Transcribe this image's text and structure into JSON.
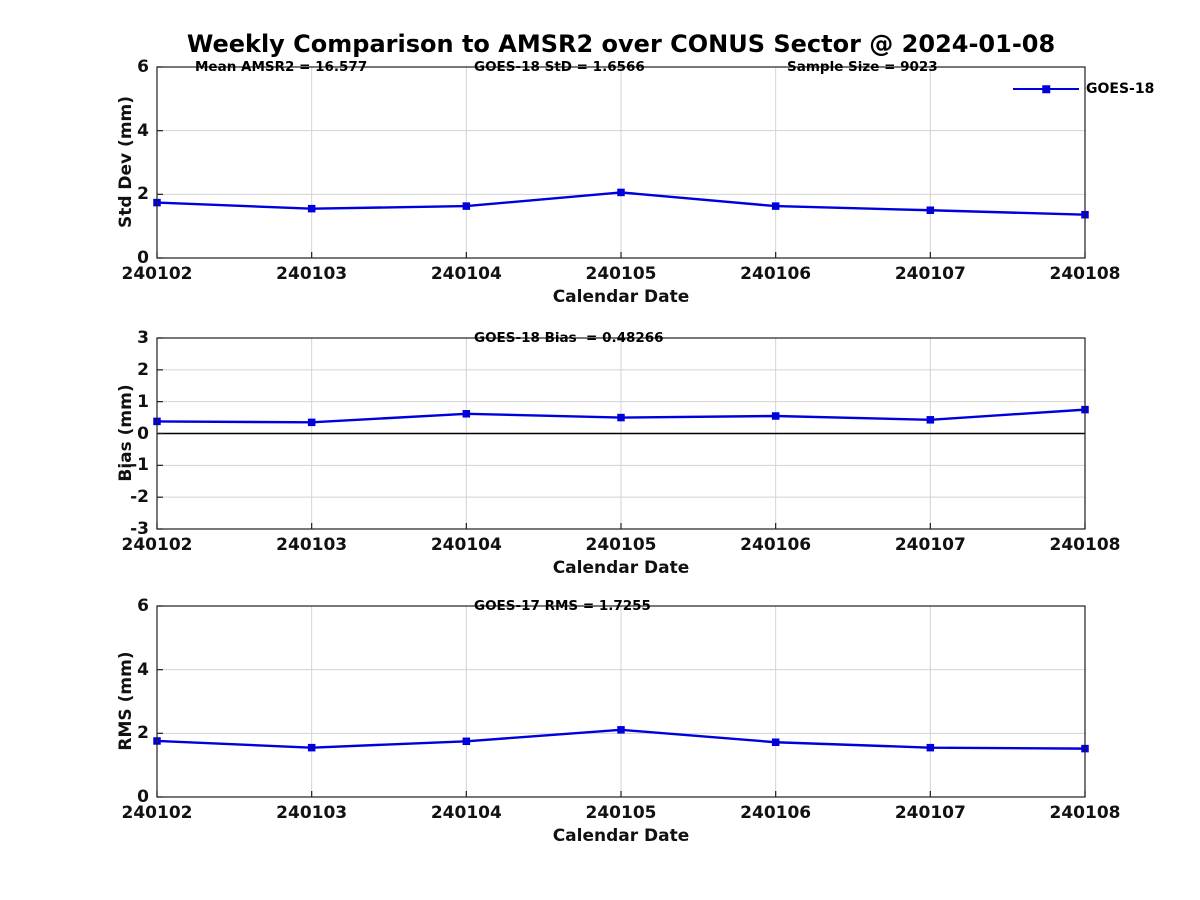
{
  "figure_title": "Weekly Comparison to AMSR2 over CONUS Sector @ 2024-01-08",
  "legend": {
    "label": "GOES-18"
  },
  "colors": {
    "line": "#0000DD",
    "marker": "#0000DD",
    "grid": "#d3d3d3",
    "axis": "#1f1f1f",
    "zero_line": "#000000",
    "text": "#000000"
  },
  "chart_data": [
    {
      "type": "line",
      "title": "",
      "xlabel": "Calendar Date",
      "ylabel": "Std Dev (mm)",
      "categories": [
        "240102",
        "240103",
        "240104",
        "240105",
        "240106",
        "240107",
        "240108"
      ],
      "series": [
        {
          "name": "GOES-18",
          "values": [
            1.74,
            1.55,
            1.63,
            2.06,
            1.63,
            1.5,
            1.36
          ]
        }
      ],
      "ylim": [
        0,
        6
      ],
      "yticks": [
        0,
        2,
        4,
        6
      ],
      "grid": true,
      "legend_position": "northeast",
      "annotations": [
        {
          "text": "Mean AMSR2 = 16.577"
        },
        {
          "text": "GOES-18 StD = 1.6566"
        },
        {
          "text": "Sample Size = 9023"
        }
      ]
    },
    {
      "type": "line",
      "title": "GOES-18 Bias  = 0.48266",
      "xlabel": "Calendar Date",
      "ylabel": "Bias (mm)",
      "categories": [
        "240102",
        "240103",
        "240104",
        "240105",
        "240106",
        "240107",
        "240108"
      ],
      "series": [
        {
          "name": "GOES-18",
          "values": [
            0.38,
            0.35,
            0.62,
            0.5,
            0.55,
            0.43,
            0.75
          ]
        }
      ],
      "ylim": [
        -3,
        3
      ],
      "yticks": [
        3,
        2,
        1,
        0,
        -1,
        -2,
        -3
      ],
      "grid": true,
      "zero_line": true,
      "annotations": [
        {
          "text": "GOES-18 Bias  = 0.48266"
        }
      ]
    },
    {
      "type": "line",
      "title": "GOES-17 RMS = 1.7255",
      "xlabel": "Calendar Date",
      "ylabel": "RMS (mm)",
      "categories": [
        "240102",
        "240103",
        "240104",
        "240105",
        "240106",
        "240107",
        "240108"
      ],
      "series": [
        {
          "name": "GOES-17",
          "values": [
            1.76,
            1.55,
            1.75,
            2.11,
            1.72,
            1.55,
            1.52
          ]
        }
      ],
      "ylim": [
        0,
        6
      ],
      "yticks": [
        0,
        2,
        4,
        6
      ],
      "grid": true,
      "annotations": [
        {
          "text": "GOES-17 RMS = 1.7255"
        }
      ]
    }
  ]
}
